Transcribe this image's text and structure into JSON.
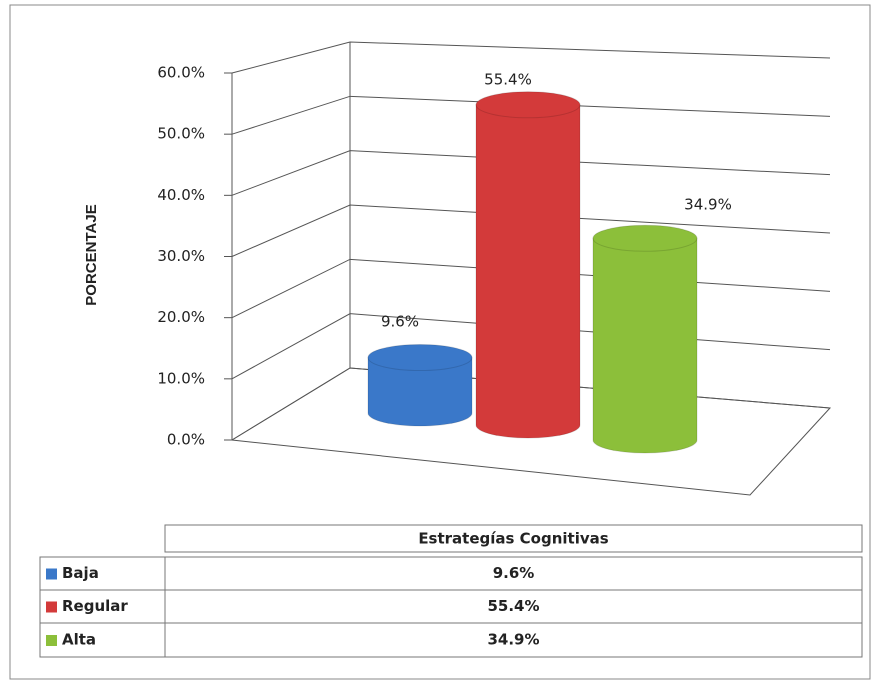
{
  "chart_data": {
    "type": "bar3d",
    "ylabel": "PORCENTAJE",
    "categories": [
      "Baja",
      "Regular",
      "Alta"
    ],
    "colors": [
      "#3a78c9",
      "#d33a3a",
      "#8cbf3a"
    ],
    "series": [
      {
        "name": "Estrategías Cognitivas",
        "values": [
          9.6,
          55.4,
          34.9
        ],
        "value_labels": [
          "9.6%",
          "55.4%",
          "34.9%"
        ]
      }
    ],
    "ylim": [
      0,
      60
    ],
    "yticks": [
      {
        "value": 0,
        "label": "0.0%"
      },
      {
        "value": 10,
        "label": "10.0%"
      },
      {
        "value": 20,
        "label": "20.0%"
      },
      {
        "value": 30,
        "label": "30.0%"
      },
      {
        "value": 40,
        "label": "40.0%"
      },
      {
        "value": 50,
        "label": "50.0%"
      },
      {
        "value": 60,
        "label": "60.0%"
      }
    ],
    "grid": true,
    "data_table": true
  }
}
